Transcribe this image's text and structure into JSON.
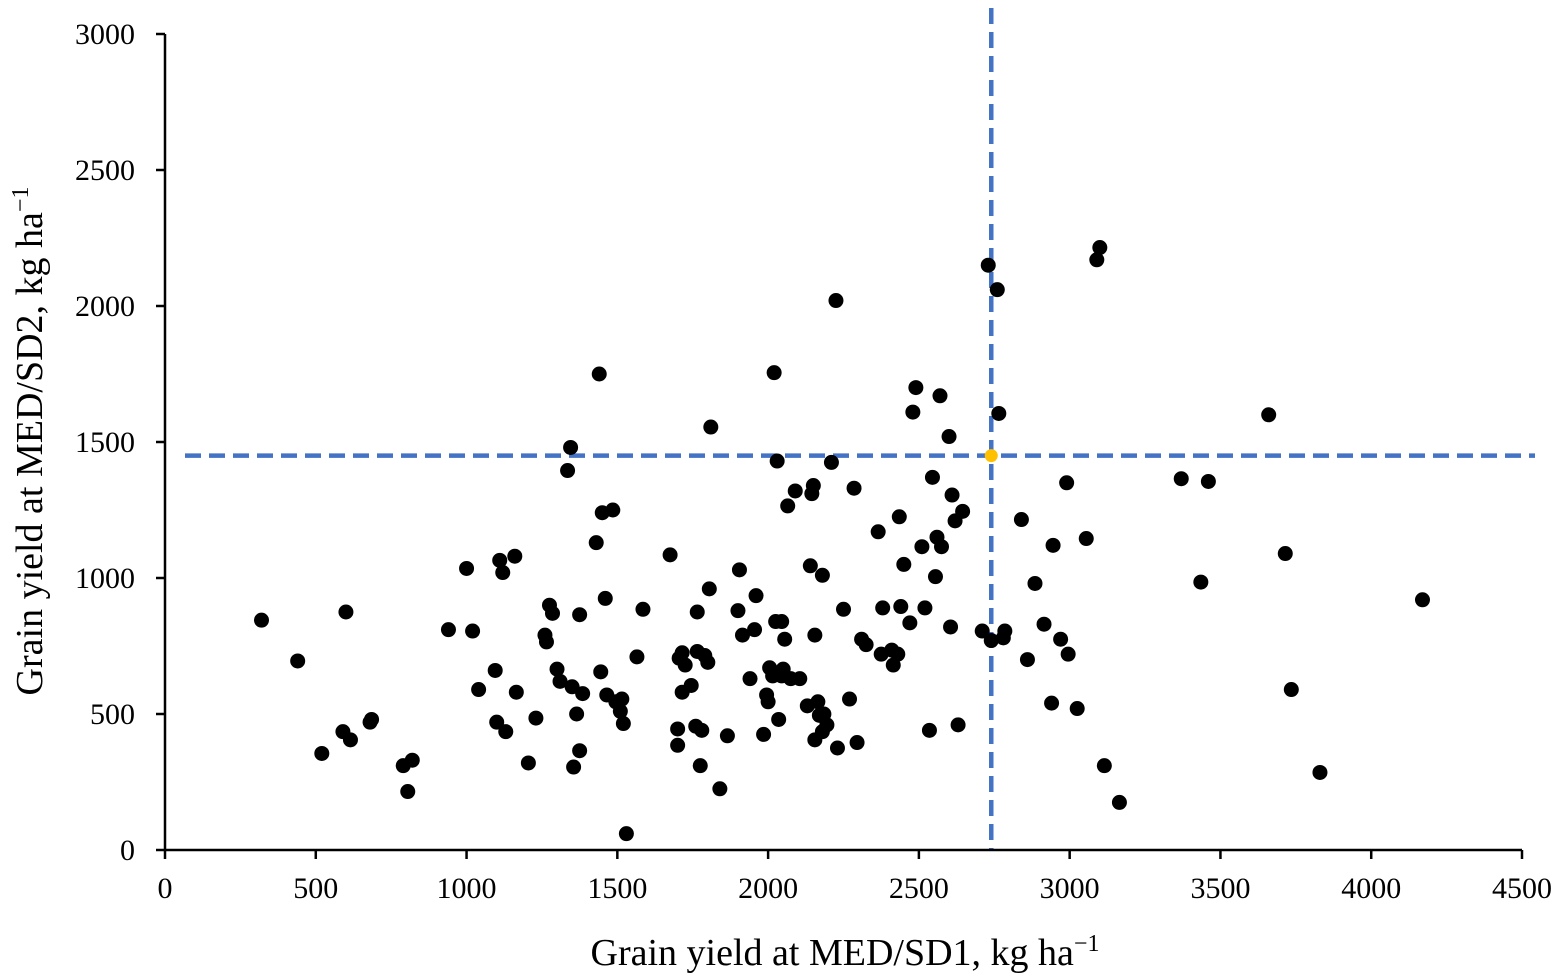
{
  "chart_data": {
    "type": "scatter",
    "title": "",
    "xlabel": "Grain yield at MED/SD1, kg ha",
    "xlabel_sup": "−1",
    "ylabel": "Grain yield at MED/SD2, kg ha",
    "ylabel_sup": "−1",
    "xlim": [
      0,
      4500
    ],
    "ylim": [
      0,
      3000
    ],
    "xticks": [
      0,
      500,
      1000,
      1500,
      2000,
      2500,
      3000,
      3500,
      4000,
      4500
    ],
    "yticks": [
      0,
      500,
      1000,
      1500,
      2000,
      2500,
      3000
    ],
    "grid": false,
    "colors": {
      "points": "#000000",
      "highlight": "#ffc000",
      "reference_lines": "#4472c4"
    },
    "reference_lines": {
      "x": 2740,
      "y": 1450,
      "style": "dashed"
    },
    "highlight_point": {
      "x": 2740,
      "y": 1450
    },
    "series": [
      {
        "points": [
          [
            320,
            845
          ],
          [
            440,
            695
          ],
          [
            520,
            355
          ],
          [
            590,
            435
          ],
          [
            600,
            875
          ],
          [
            615,
            405
          ],
          [
            680,
            470
          ],
          [
            685,
            480
          ],
          [
            790,
            310
          ],
          [
            805,
            215
          ],
          [
            820,
            330
          ],
          [
            940,
            810
          ],
          [
            1000,
            1035
          ],
          [
            1020,
            805
          ],
          [
            1040,
            590
          ],
          [
            1095,
            660
          ],
          [
            1100,
            470
          ],
          [
            1110,
            1065
          ],
          [
            1120,
            1020
          ],
          [
            1130,
            435
          ],
          [
            1160,
            1080
          ],
          [
            1165,
            580
          ],
          [
            1205,
            320
          ],
          [
            1230,
            485
          ],
          [
            1260,
            790
          ],
          [
            1265,
            765
          ],
          [
            1275,
            900
          ],
          [
            1285,
            870
          ],
          [
            1300,
            665
          ],
          [
            1310,
            620
          ],
          [
            1335,
            1395
          ],
          [
            1345,
            1480
          ],
          [
            1350,
            600
          ],
          [
            1355,
            305
          ],
          [
            1365,
            500
          ],
          [
            1375,
            365
          ],
          [
            1375,
            865
          ],
          [
            1385,
            575
          ],
          [
            1430,
            1130
          ],
          [
            1440,
            1750
          ],
          [
            1445,
            655
          ],
          [
            1450,
            1240
          ],
          [
            1460,
            925
          ],
          [
            1465,
            570
          ],
          [
            1485,
            1250
          ],
          [
            1495,
            545
          ],
          [
            1510,
            510
          ],
          [
            1515,
            555
          ],
          [
            1520,
            465
          ],
          [
            1530,
            60
          ],
          [
            1565,
            710
          ],
          [
            1585,
            885
          ],
          [
            1675,
            1085
          ],
          [
            1700,
            445
          ],
          [
            1700,
            385
          ],
          [
            1705,
            705
          ],
          [
            1715,
            725
          ],
          [
            1715,
            580
          ],
          [
            1725,
            680
          ],
          [
            1745,
            605
          ],
          [
            1760,
            455
          ],
          [
            1765,
            875
          ],
          [
            1765,
            730
          ],
          [
            1775,
            310
          ],
          [
            1780,
            440
          ],
          [
            1790,
            715
          ],
          [
            1800,
            690
          ],
          [
            1805,
            960
          ],
          [
            1810,
            1555
          ],
          [
            1840,
            225
          ],
          [
            1865,
            420
          ],
          [
            1900,
            880
          ],
          [
            1905,
            1030
          ],
          [
            1915,
            790
          ],
          [
            1940,
            630
          ],
          [
            1955,
            810
          ],
          [
            1960,
            935
          ],
          [
            1985,
            425
          ],
          [
            1995,
            570
          ],
          [
            2000,
            545
          ],
          [
            2005,
            670
          ],
          [
            2015,
            640
          ],
          [
            2020,
            1755
          ],
          [
            2025,
            840
          ],
          [
            2030,
            1430
          ],
          [
            2035,
            480
          ],
          [
            2045,
            640
          ],
          [
            2045,
            840
          ],
          [
            2050,
            665
          ],
          [
            2055,
            775
          ],
          [
            2065,
            1265
          ],
          [
            2075,
            630
          ],
          [
            2090,
            1320
          ],
          [
            2105,
            630
          ],
          [
            2130,
            530
          ],
          [
            2140,
            1045
          ],
          [
            2145,
            1310
          ],
          [
            2150,
            1340
          ],
          [
            2155,
            405
          ],
          [
            2155,
            790
          ],
          [
            2165,
            545
          ],
          [
            2170,
            495
          ],
          [
            2180,
            1010
          ],
          [
            2180,
            435
          ],
          [
            2185,
            500
          ],
          [
            2195,
            460
          ],
          [
            2210,
            1425
          ],
          [
            2225,
            2020
          ],
          [
            2230,
            375
          ],
          [
            2250,
            885
          ],
          [
            2270,
            555
          ],
          [
            2285,
            1330
          ],
          [
            2295,
            395
          ],
          [
            2310,
            775
          ],
          [
            2325,
            755
          ],
          [
            2365,
            1170
          ],
          [
            2375,
            720
          ],
          [
            2380,
            890
          ],
          [
            2410,
            735
          ],
          [
            2415,
            680
          ],
          [
            2430,
            720
          ],
          [
            2435,
            1225
          ],
          [
            2440,
            895
          ],
          [
            2450,
            1050
          ],
          [
            2470,
            835
          ],
          [
            2480,
            1610
          ],
          [
            2490,
            1700
          ],
          [
            2510,
            1115
          ],
          [
            2520,
            890
          ],
          [
            2535,
            440
          ],
          [
            2545,
            1370
          ],
          [
            2555,
            1005
          ],
          [
            2560,
            1150
          ],
          [
            2570,
            1670
          ],
          [
            2575,
            1115
          ],
          [
            2600,
            1520
          ],
          [
            2605,
            820
          ],
          [
            2610,
            1305
          ],
          [
            2620,
            1210
          ],
          [
            2630,
            460
          ],
          [
            2645,
            1245
          ],
          [
            2710,
            805
          ],
          [
            2730,
            2150
          ],
          [
            2740,
            770
          ],
          [
            2760,
            2060
          ],
          [
            2765,
            1605
          ],
          [
            2780,
            780
          ],
          [
            2785,
            805
          ],
          [
            2840,
            1215
          ],
          [
            2860,
            700
          ],
          [
            2885,
            980
          ],
          [
            2915,
            830
          ],
          [
            2940,
            540
          ],
          [
            2945,
            1120
          ],
          [
            2970,
            775
          ],
          [
            2990,
            1350
          ],
          [
            2995,
            720
          ],
          [
            3025,
            520
          ],
          [
            3055,
            1145
          ],
          [
            3090,
            2170
          ],
          [
            3100,
            2215
          ],
          [
            3115,
            310
          ],
          [
            3165,
            175
          ],
          [
            3370,
            1365
          ],
          [
            3435,
            985
          ],
          [
            3460,
            1355
          ],
          [
            3660,
            1600
          ],
          [
            3715,
            1090
          ],
          [
            3735,
            590
          ],
          [
            3830,
            285
          ],
          [
            4170,
            920
          ]
        ]
      }
    ]
  }
}
